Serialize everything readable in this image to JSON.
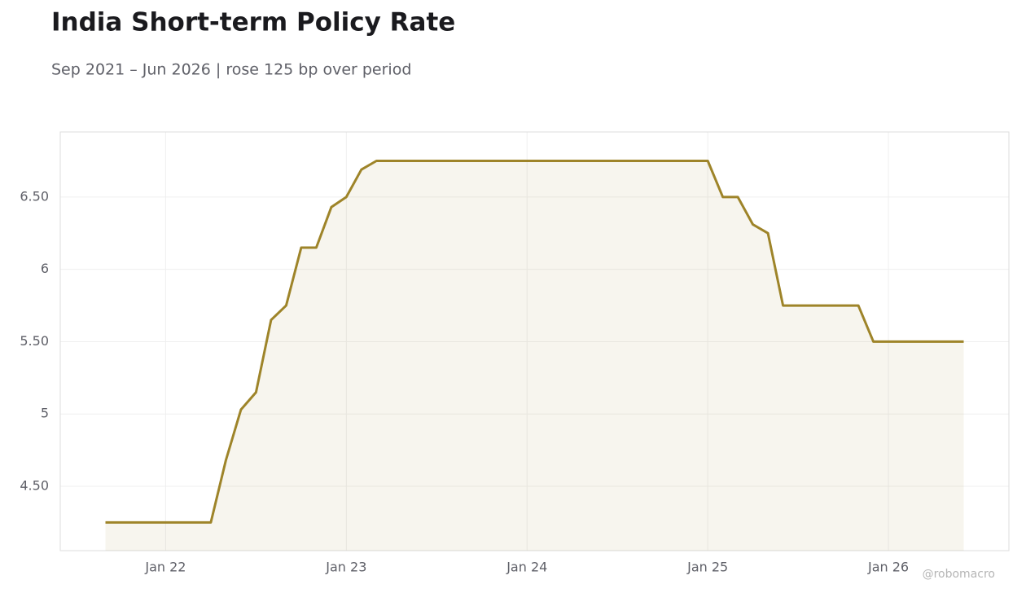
{
  "chart_data": {
    "type": "area",
    "title": "India Short-term Policy Rate",
    "subtitle": "Sep 2021 – Jun 2026 | rose 125 bp over period",
    "watermark": "@robomacro",
    "color": "#9e8429",
    "grid": true,
    "x": [
      "2021-09",
      "2021-10",
      "2021-11",
      "2021-12",
      "2022-01",
      "2022-02",
      "2022-03",
      "2022-04",
      "2022-05",
      "2022-06",
      "2022-07",
      "2022-08",
      "2022-09",
      "2022-10",
      "2022-11",
      "2022-12",
      "2023-01",
      "2023-02",
      "2023-03",
      "2023-04",
      "2023-05",
      "2023-06",
      "2023-07",
      "2023-08",
      "2023-09",
      "2023-10",
      "2023-11",
      "2023-12",
      "2024-01",
      "2024-02",
      "2024-03",
      "2024-04",
      "2024-05",
      "2024-06",
      "2024-07",
      "2024-08",
      "2024-09",
      "2024-10",
      "2024-11",
      "2024-12",
      "2025-01",
      "2025-02",
      "2025-03",
      "2025-04",
      "2025-05",
      "2025-06",
      "2025-07",
      "2025-08",
      "2025-09",
      "2025-10",
      "2025-11",
      "2025-12",
      "2026-01",
      "2026-02",
      "2026-03",
      "2026-04",
      "2026-05",
      "2026-06"
    ],
    "values": [
      4.25,
      4.25,
      4.25,
      4.25,
      4.25,
      4.25,
      4.25,
      4.25,
      4.68,
      5.03,
      5.15,
      5.65,
      5.75,
      6.15,
      6.15,
      6.43,
      6.5,
      6.69,
      6.75,
      6.75,
      6.75,
      6.75,
      6.75,
      6.75,
      6.75,
      6.75,
      6.75,
      6.75,
      6.75,
      6.75,
      6.75,
      6.75,
      6.75,
      6.75,
      6.75,
      6.75,
      6.75,
      6.75,
      6.75,
      6.75,
      6.75,
      6.5,
      6.5,
      6.31,
      6.25,
      5.75,
      5.75,
      5.75,
      5.75,
      5.75,
      5.75,
      5.5,
      5.5,
      5.5,
      5.5,
      5.5,
      5.5,
      5.5
    ],
    "xlim": [
      "2021-06",
      "2026-09"
    ],
    "xticks": [
      {
        "value": "2022-01",
        "label": "Jan 22"
      },
      {
        "value": "2023-01",
        "label": "Jan 23"
      },
      {
        "value": "2024-01",
        "label": "Jan 24"
      },
      {
        "value": "2025-01",
        "label": "Jan 25"
      },
      {
        "value": "2026-01",
        "label": "Jan 26"
      }
    ],
    "ylim": [
      4.055,
      6.95
    ],
    "yticks": [
      {
        "value": 4.5,
        "label": "4.50"
      },
      5,
      {
        "value": 5.5,
        "label": "5.50"
      },
      6,
      {
        "value": 6.5,
        "label": "6.50"
      }
    ]
  }
}
